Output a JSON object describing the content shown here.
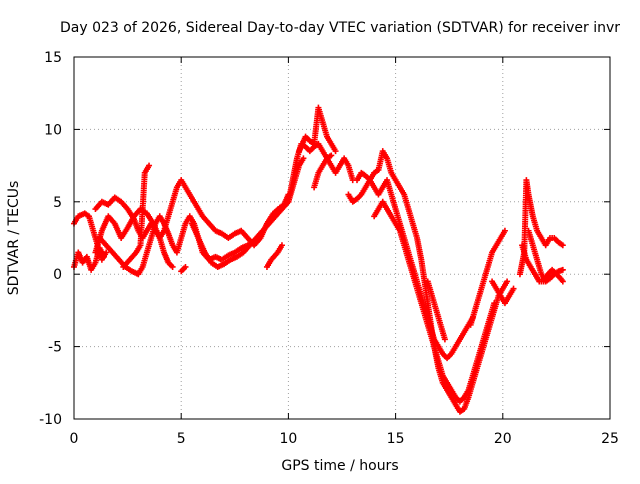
{
  "chart_data": {
    "type": "scatter",
    "title": "Day 023 of 2026, Sidereal Day-to-day VTEC variation (SDTVAR) for receiver invr",
    "xlabel": "GPS time / hours",
    "ylabel": "SDTVAR / TECUs",
    "xlim": [
      0,
      25
    ],
    "ylim": [
      -10,
      15
    ],
    "xticks": [
      "0",
      "5",
      "10",
      "15",
      "20",
      "25"
    ],
    "yticks": [
      "-10",
      "-5",
      "0",
      "5",
      "10",
      "15"
    ],
    "grid": true,
    "marker": "+",
    "color": "#ff0000",
    "series": [
      {
        "points": [
          [
            0.0,
            3.5
          ],
          [
            0.2,
            4.0
          ],
          [
            0.5,
            4.2
          ],
          [
            0.7,
            4.0
          ],
          [
            0.9,
            3.0
          ],
          [
            1.1,
            2.0
          ],
          [
            1.3,
            1.0
          ],
          [
            1.5,
            1.5
          ]
        ]
      },
      {
        "points": [
          [
            0.0,
            0.5
          ],
          [
            0.2,
            1.5
          ],
          [
            0.4,
            0.8
          ],
          [
            0.6,
            1.2
          ],
          [
            0.8,
            0.3
          ],
          [
            1.0,
            0.8
          ],
          [
            1.2,
            1.8
          ],
          [
            1.4,
            1.2
          ]
        ]
      },
      {
        "points": [
          [
            1.0,
            4.5
          ],
          [
            1.3,
            5.0
          ],
          [
            1.6,
            4.8
          ],
          [
            1.9,
            5.3
          ],
          [
            2.2,
            5.0
          ],
          [
            2.5,
            4.5
          ],
          [
            2.8,
            3.8
          ],
          [
            3.0,
            3.0
          ],
          [
            3.2,
            2.5
          ],
          [
            3.4,
            3.0
          ],
          [
            3.6,
            3.5
          ],
          [
            3.8,
            3.0
          ],
          [
            4.0,
            2.5
          ],
          [
            4.2,
            3.0
          ],
          [
            4.4,
            4.0
          ],
          [
            4.6,
            5.0
          ],
          [
            4.8,
            6.0
          ],
          [
            5.0,
            6.5
          ],
          [
            5.2,
            6.0
          ],
          [
            5.4,
            5.5
          ],
          [
            5.6,
            5.0
          ],
          [
            5.8,
            4.5
          ],
          [
            6.0,
            4.0
          ],
          [
            6.3,
            3.5
          ],
          [
            6.6,
            3.0
          ],
          [
            6.9,
            2.8
          ],
          [
            7.2,
            2.5
          ],
          [
            7.5,
            2.8
          ],
          [
            7.8,
            3.0
          ],
          [
            8.1,
            2.5
          ],
          [
            8.4,
            2.0
          ],
          [
            8.7,
            2.5
          ],
          [
            9.0,
            3.5
          ],
          [
            9.3,
            4.2
          ],
          [
            9.6,
            4.6
          ],
          [
            9.8,
            4.8
          ],
          [
            10.0,
            5.5
          ]
        ]
      },
      {
        "points": [
          [
            1.2,
            2.5
          ],
          [
            1.5,
            2.0
          ],
          [
            1.8,
            1.5
          ],
          [
            2.1,
            1.0
          ],
          [
            2.4,
            0.5
          ],
          [
            2.7,
            0.2
          ],
          [
            3.0,
            0.0
          ],
          [
            3.2,
            0.5
          ],
          [
            3.4,
            1.5
          ],
          [
            3.6,
            2.5
          ],
          [
            3.8,
            3.5
          ],
          [
            4.0,
            4.0
          ],
          [
            4.2,
            3.5
          ],
          [
            4.4,
            2.8
          ],
          [
            4.6,
            2.0
          ],
          [
            4.8,
            1.5
          ],
          [
            5.0,
            2.5
          ],
          [
            5.2,
            3.5
          ],
          [
            5.4,
            4.0
          ],
          [
            5.6,
            3.5
          ],
          [
            5.8,
            2.5
          ],
          [
            6.0,
            1.5
          ],
          [
            6.3,
            1.0
          ],
          [
            6.6,
            1.2
          ],
          [
            6.9,
            1.0
          ],
          [
            7.2,
            1.3
          ],
          [
            7.5,
            1.5
          ],
          [
            7.8,
            1.8
          ],
          [
            8.1,
            2.0
          ]
        ]
      },
      {
        "points": [
          [
            1.0,
            1.5
          ],
          [
            1.3,
            3.0
          ],
          [
            1.6,
            4.0
          ],
          [
            1.9,
            3.5
          ],
          [
            2.2,
            2.5
          ],
          [
            2.5,
            3.2
          ],
          [
            2.8,
            4.0
          ],
          [
            3.1,
            4.5
          ],
          [
            3.4,
            4.2
          ],
          [
            3.7,
            3.5
          ],
          [
            4.0,
            2.5
          ],
          [
            4.2,
            1.5
          ],
          [
            4.4,
            0.8
          ],
          [
            4.6,
            0.5
          ]
        ]
      },
      {
        "points": [
          [
            2.3,
            0.5
          ],
          [
            2.6,
            1.0
          ],
          [
            2.9,
            1.5
          ],
          [
            3.1,
            2.0
          ],
          [
            3.3,
            7.0
          ],
          [
            3.5,
            7.5
          ]
        ]
      },
      {
        "points": [
          [
            5.0,
            0.2
          ],
          [
            5.2,
            0.5
          ]
        ]
      },
      {
        "points": [
          [
            5.5,
            3.5
          ],
          [
            5.8,
            2.5
          ],
          [
            6.1,
            1.5
          ],
          [
            6.4,
            0.8
          ],
          [
            6.7,
            0.5
          ],
          [
            7.0,
            0.7
          ],
          [
            7.3,
            1.0
          ],
          [
            7.6,
            1.2
          ],
          [
            7.9,
            1.5
          ],
          [
            8.2,
            2.0
          ],
          [
            8.5,
            2.5
          ],
          [
            8.8,
            3.0
          ],
          [
            9.1,
            3.5
          ],
          [
            9.4,
            4.0
          ],
          [
            9.7,
            4.5
          ],
          [
            10.0,
            5.0
          ],
          [
            10.3,
            6.5
          ],
          [
            10.5,
            7.5
          ],
          [
            10.7,
            8.0
          ]
        ]
      },
      {
        "points": [
          [
            9.0,
            0.5
          ],
          [
            9.2,
            1.0
          ],
          [
            9.5,
            1.5
          ],
          [
            9.7,
            2.0
          ]
        ]
      },
      {
        "points": [
          [
            10.0,
            5.0
          ],
          [
            10.2,
            6.5
          ],
          [
            10.4,
            8.0
          ],
          [
            10.6,
            9.0
          ],
          [
            10.8,
            8.8
          ],
          [
            11.0,
            8.5
          ],
          [
            11.2,
            8.8
          ],
          [
            11.4,
            9.0
          ],
          [
            11.6,
            8.5
          ],
          [
            11.8,
            8.0
          ],
          [
            12.0,
            7.5
          ],
          [
            12.2,
            7.0
          ],
          [
            12.4,
            7.5
          ],
          [
            12.6,
            8.0
          ],
          [
            12.8,
            7.5
          ],
          [
            13.0,
            6.5
          ]
        ]
      },
      {
        "points": [
          [
            10.5,
            8.5
          ],
          [
            10.8,
            9.5
          ],
          [
            11.0,
            9.2
          ],
          [
            11.2,
            9.0
          ],
          [
            11.4,
            11.5
          ],
          [
            11.6,
            10.5
          ],
          [
            11.8,
            9.5
          ],
          [
            12.0,
            9.0
          ],
          [
            12.2,
            8.5
          ]
        ]
      },
      {
        "points": [
          [
            11.2,
            6.0
          ],
          [
            11.4,
            7.0
          ],
          [
            11.6,
            7.5
          ],
          [
            11.8,
            8.0
          ],
          [
            12.0,
            8.2
          ]
        ]
      },
      {
        "points": [
          [
            12.8,
            5.5
          ],
          [
            13.0,
            5.0
          ],
          [
            13.2,
            5.2
          ],
          [
            13.4,
            5.5
          ],
          [
            13.6,
            6.0
          ],
          [
            13.8,
            6.5
          ],
          [
            14.0,
            7.0
          ],
          [
            14.2,
            7.2
          ],
          [
            14.4,
            8.5
          ],
          [
            14.6,
            8.0
          ],
          [
            14.8,
            7.0
          ],
          [
            15.0,
            6.5
          ],
          [
            15.2,
            6.0
          ],
          [
            15.4,
            5.5
          ],
          [
            15.6,
            4.5
          ],
          [
            15.8,
            3.5
          ],
          [
            16.0,
            2.5
          ],
          [
            16.2,
            1.0
          ],
          [
            16.4,
            -1.0
          ],
          [
            16.6,
            -3.0
          ],
          [
            16.8,
            -5.0
          ],
          [
            17.0,
            -6.5
          ],
          [
            17.2,
            -7.5
          ],
          [
            17.4,
            -8.0
          ],
          [
            17.6,
            -8.5
          ],
          [
            17.8,
            -9.0
          ],
          [
            18.0,
            -9.5
          ],
          [
            18.2,
            -9.3
          ],
          [
            18.4,
            -8.5
          ],
          [
            18.6,
            -7.5
          ],
          [
            18.8,
            -6.5
          ],
          [
            19.0,
            -5.5
          ],
          [
            19.2,
            -4.5
          ],
          [
            19.4,
            -3.5
          ],
          [
            19.6,
            -2.5
          ],
          [
            19.8,
            -1.5
          ],
          [
            20.0,
            -1.0
          ],
          [
            20.2,
            -0.5
          ]
        ]
      },
      {
        "points": [
          [
            13.2,
            6.5
          ],
          [
            13.4,
            7.0
          ],
          [
            13.6,
            6.8
          ],
          [
            13.8,
            6.5
          ],
          [
            14.0,
            6.0
          ],
          [
            14.2,
            5.5
          ],
          [
            14.4,
            6.0
          ],
          [
            14.6,
            6.5
          ],
          [
            14.8,
            5.5
          ],
          [
            15.0,
            4.5
          ],
          [
            15.2,
            3.5
          ],
          [
            15.4,
            2.5
          ],
          [
            15.6,
            1.5
          ],
          [
            15.8,
            0.5
          ],
          [
            16.0,
            -0.5
          ],
          [
            16.2,
            -1.5
          ],
          [
            16.4,
            -2.5
          ],
          [
            16.6,
            -3.5
          ],
          [
            16.8,
            -4.5
          ],
          [
            17.0,
            -5.0
          ],
          [
            17.2,
            -5.5
          ],
          [
            17.4,
            -5.8
          ],
          [
            17.6,
            -5.5
          ],
          [
            17.8,
            -5.0
          ],
          [
            18.0,
            -4.5
          ],
          [
            18.2,
            -4.0
          ],
          [
            18.4,
            -3.5
          ],
          [
            18.6,
            -3.0
          ]
        ]
      },
      {
        "points": [
          [
            14.0,
            4.0
          ],
          [
            14.2,
            4.5
          ],
          [
            14.4,
            5.0
          ],
          [
            14.6,
            4.5
          ],
          [
            14.8,
            4.0
          ],
          [
            15.0,
            3.5
          ],
          [
            15.2,
            3.0
          ],
          [
            15.4,
            2.0
          ],
          [
            15.6,
            1.0
          ],
          [
            15.8,
            0.0
          ],
          [
            16.0,
            -1.0
          ],
          [
            16.2,
            -2.0
          ],
          [
            16.4,
            -3.0
          ],
          [
            16.6,
            -4.0
          ],
          [
            16.8,
            -5.0
          ],
          [
            17.0,
            -6.0
          ],
          [
            17.2,
            -7.0
          ],
          [
            17.4,
            -7.5
          ],
          [
            17.6,
            -8.0
          ],
          [
            17.8,
            -8.5
          ],
          [
            18.0,
            -8.8
          ],
          [
            18.2,
            -8.5
          ],
          [
            18.4,
            -8.0
          ],
          [
            18.6,
            -7.0
          ],
          [
            18.8,
            -6.0
          ],
          [
            19.0,
            -5.0
          ],
          [
            19.2,
            -4.0
          ],
          [
            19.4,
            -3.0
          ],
          [
            19.6,
            -2.0
          ]
        ]
      },
      {
        "points": [
          [
            16.5,
            -0.5
          ],
          [
            16.7,
            -1.5
          ],
          [
            16.9,
            -2.5
          ],
          [
            17.1,
            -3.5
          ],
          [
            17.3,
            -4.5
          ]
        ]
      },
      {
        "points": [
          [
            18.5,
            -3.5
          ],
          [
            18.7,
            -2.5
          ],
          [
            18.9,
            -1.5
          ],
          [
            19.1,
            -0.5
          ],
          [
            19.3,
            0.5
          ],
          [
            19.5,
            1.5
          ],
          [
            19.7,
            2.0
          ],
          [
            19.9,
            2.5
          ],
          [
            20.1,
            3.0
          ]
        ]
      },
      {
        "points": [
          [
            19.5,
            -0.5
          ],
          [
            19.7,
            -1.0
          ],
          [
            19.9,
            -1.5
          ],
          [
            20.1,
            -2.0
          ],
          [
            20.3,
            -1.5
          ],
          [
            20.5,
            -1.0
          ]
        ]
      },
      {
        "points": [
          [
            20.8,
            0.0
          ],
          [
            21.0,
            1.5
          ],
          [
            21.1,
            6.5
          ],
          [
            21.2,
            5.5
          ],
          [
            21.4,
            4.0
          ],
          [
            21.6,
            3.0
          ],
          [
            21.8,
            2.5
          ],
          [
            22.0,
            2.0
          ],
          [
            22.2,
            2.5
          ],
          [
            22.4,
            2.5
          ],
          [
            22.6,
            2.2
          ],
          [
            22.8,
            2.0
          ]
        ]
      },
      {
        "points": [
          [
            20.9,
            2.0
          ],
          [
            21.1,
            1.0
          ],
          [
            21.3,
            0.5
          ],
          [
            21.5,
            0.0
          ],
          [
            21.7,
            -0.5
          ],
          [
            21.9,
            -0.5
          ],
          [
            22.1,
            0.0
          ],
          [
            22.3,
            0.3
          ],
          [
            22.5,
            0.0
          ],
          [
            22.7,
            -0.3
          ],
          [
            22.8,
            -0.5
          ]
        ]
      },
      {
        "points": [
          [
            21.2,
            3.0
          ],
          [
            21.4,
            2.0
          ],
          [
            21.6,
            1.0
          ],
          [
            21.8,
            0.0
          ],
          [
            22.0,
            -0.5
          ],
          [
            22.2,
            -0.3
          ],
          [
            22.4,
            0.0
          ],
          [
            22.6,
            0.2
          ],
          [
            22.8,
            0.3
          ]
        ]
      }
    ]
  }
}
